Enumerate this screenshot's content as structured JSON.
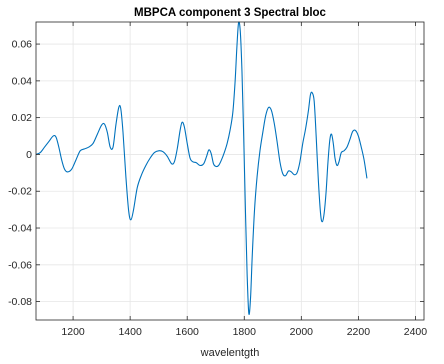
{
  "chart_data": {
    "type": "line",
    "title": "MBPCA component 3 Spectral bloc",
    "xlabel": "wavelentgth",
    "ylabel": "",
    "xlim": [
      1070,
      2430
    ],
    "ylim": [
      -0.09,
      0.072
    ],
    "grid": true,
    "x_ticks": [
      1200,
      1400,
      1600,
      1800,
      2000,
      2200,
      2400
    ],
    "y_ticks": [
      -0.08,
      -0.06,
      -0.04,
      -0.02,
      0,
      0.02,
      0.04,
      0.06
    ],
    "x_tick_labels": [
      "1200",
      "1400",
      "1600",
      "1800",
      "2000",
      "2200",
      "2400"
    ],
    "y_tick_labels": [
      "-0.08",
      "-0.06",
      "-0.04",
      "-0.02",
      "0",
      "0.02",
      "0.04",
      "0.06"
    ],
    "line_color": "#0072BD",
    "series": [
      {
        "name": "",
        "points": [
          [
            1070,
            0.0
          ],
          [
            1085,
            0.001
          ],
          [
            1100,
            0.004
          ],
          [
            1115,
            0.007
          ],
          [
            1130,
            0.01
          ],
          [
            1140,
            0.0095
          ],
          [
            1150,
            0.004
          ],
          [
            1160,
            -0.003
          ],
          [
            1170,
            -0.008
          ],
          [
            1180,
            -0.0095
          ],
          [
            1195,
            -0.008
          ],
          [
            1210,
            -0.003
          ],
          [
            1225,
            0.002
          ],
          [
            1240,
            0.003
          ],
          [
            1255,
            0.004
          ],
          [
            1270,
            0.006
          ],
          [
            1285,
            0.011
          ],
          [
            1300,
            0.016
          ],
          [
            1310,
            0.0165
          ],
          [
            1320,
            0.012
          ],
          [
            1330,
            0.004
          ],
          [
            1340,
            0.004
          ],
          [
            1350,
            0.016
          ],
          [
            1360,
            0.0255
          ],
          [
            1367,
            0.025
          ],
          [
            1375,
            0.012
          ],
          [
            1385,
            -0.012
          ],
          [
            1395,
            -0.031
          ],
          [
            1403,
            -0.0355
          ],
          [
            1412,
            -0.03
          ],
          [
            1425,
            -0.018
          ],
          [
            1440,
            -0.011
          ],
          [
            1455,
            -0.006
          ],
          [
            1470,
            -0.002
          ],
          [
            1485,
            0.001
          ],
          [
            1500,
            0.002
          ],
          [
            1515,
            0.0015
          ],
          [
            1530,
            -0.001
          ],
          [
            1545,
            -0.005
          ],
          [
            1555,
            -0.004
          ],
          [
            1565,
            0.003
          ],
          [
            1575,
            0.013
          ],
          [
            1582,
            0.0175
          ],
          [
            1590,
            0.015
          ],
          [
            1600,
            0.006
          ],
          [
            1610,
            -0.002
          ],
          [
            1620,
            -0.004
          ],
          [
            1632,
            -0.0045
          ],
          [
            1645,
            -0.006
          ],
          [
            1658,
            -0.005
          ],
          [
            1668,
            -0.001
          ],
          [
            1676,
            0.0025
          ],
          [
            1684,
            0.0005
          ],
          [
            1692,
            -0.005
          ],
          [
            1700,
            -0.0065
          ],
          [
            1710,
            -0.006
          ],
          [
            1720,
            -0.003
          ],
          [
            1730,
            0.001
          ],
          [
            1740,
            0.006
          ],
          [
            1750,
            0.013
          ],
          [
            1760,
            0.023
          ],
          [
            1768,
            0.04
          ],
          [
            1774,
            0.058
          ],
          [
            1780,
            0.0715
          ],
          [
            1786,
            0.067
          ],
          [
            1792,
            0.045
          ],
          [
            1798,
            0.01
          ],
          [
            1804,
            -0.03
          ],
          [
            1810,
            -0.065
          ],
          [
            1816,
            -0.0865
          ],
          [
            1822,
            -0.078
          ],
          [
            1828,
            -0.055
          ],
          [
            1836,
            -0.03
          ],
          [
            1845,
            -0.012
          ],
          [
            1855,
            0.002
          ],
          [
            1865,
            0.012
          ],
          [
            1875,
            0.021
          ],
          [
            1885,
            0.0255
          ],
          [
            1895,
            0.024
          ],
          [
            1905,
            0.017
          ],
          [
            1915,
            0.007
          ],
          [
            1925,
            -0.004
          ],
          [
            1935,
            -0.0105
          ],
          [
            1945,
            -0.0115
          ],
          [
            1955,
            -0.009
          ],
          [
            1965,
            -0.0095
          ],
          [
            1975,
            -0.011
          ],
          [
            1985,
            -0.01
          ],
          [
            1995,
            -0.004
          ],
          [
            2005,
            0.006
          ],
          [
            2015,
            0.014
          ],
          [
            2025,
            0.024
          ],
          [
            2032,
            0.0325
          ],
          [
            2038,
            0.0335
          ],
          [
            2045,
            0.029
          ],
          [
            2052,
            0.01
          ],
          [
            2060,
            -0.015
          ],
          [
            2068,
            -0.033
          ],
          [
            2074,
            -0.0365
          ],
          [
            2080,
            -0.032
          ],
          [
            2087,
            -0.02
          ],
          [
            2093,
            -0.005
          ],
          [
            2100,
            0.008
          ],
          [
            2106,
            0.011
          ],
          [
            2112,
            0.006
          ],
          [
            2118,
            -0.002
          ],
          [
            2125,
            -0.006
          ],
          [
            2132,
            -0.004
          ],
          [
            2140,
            0.001
          ],
          [
            2150,
            0.002
          ],
          [
            2160,
            0.004
          ],
          [
            2170,
            0.008
          ],
          [
            2180,
            0.0125
          ],
          [
            2190,
            0.013
          ],
          [
            2200,
            0.01
          ],
          [
            2210,
            0.004
          ],
          [
            2220,
            -0.003
          ],
          [
            2230,
            -0.013
          ]
        ]
      }
    ]
  }
}
